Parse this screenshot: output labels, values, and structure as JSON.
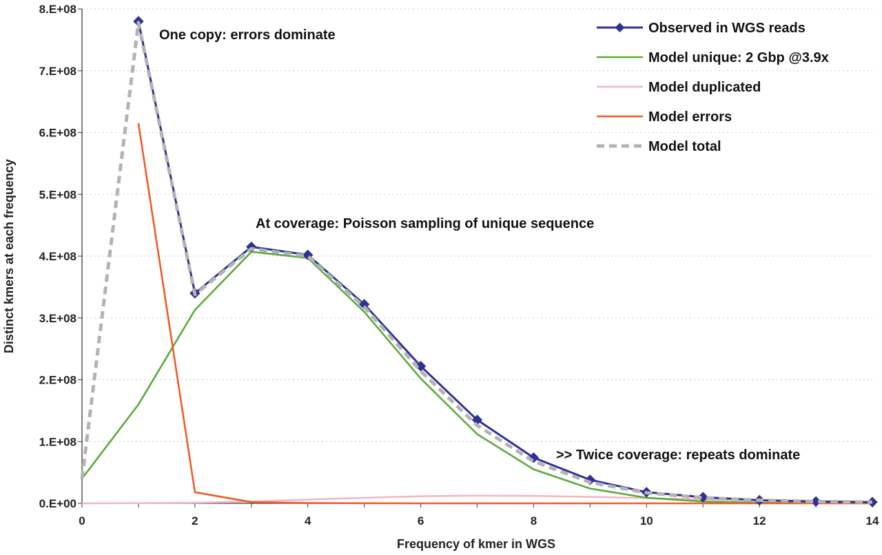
{
  "chart_data": {
    "type": "line",
    "title": "",
    "xlabel": "Frequency of kmer in WGS",
    "ylabel": "Distinct kmers at each frequency",
    "xlim": [
      0,
      14
    ],
    "ylim": [
      0,
      800000000
    ],
    "x_ticks": [
      0,
      2,
      4,
      6,
      8,
      10,
      12,
      14
    ],
    "x_tick_labels": [
      "0",
      "2",
      "4",
      "6",
      "8",
      "10",
      "12",
      "14"
    ],
    "y_ticks": [
      0,
      100000000,
      200000000,
      300000000,
      400000000,
      500000000,
      600000000,
      700000000,
      800000000
    ],
    "y_tick_labels": [
      "0.E+00",
      "1.E+08",
      "2.E+08",
      "3.E+08",
      "4.E+08",
      "5.E+08",
      "6.E+08",
      "7.E+08",
      "8.E+08"
    ],
    "grid": "horizontal dotted",
    "legend_position": "top-right",
    "series": [
      {
        "name": "Observed in WGS reads",
        "color": "#2e3192",
        "marker": "diamond",
        "x": [
          1,
          2,
          3,
          4,
          5,
          6,
          7,
          8,
          9,
          10,
          11,
          12,
          13,
          14
        ],
        "values": [
          780000000,
          340000000,
          415000000,
          402000000,
          322000000,
          222000000,
          135000000,
          74000000,
          38000000,
          18000000,
          10000000,
          5000000,
          3000000,
          2000000
        ]
      },
      {
        "name": "Model unique: 2 Gbp @3.9x",
        "color": "#5aaa3c",
        "x": [
          0,
          1,
          2,
          3,
          4,
          5,
          6,
          7,
          8,
          9,
          10,
          11,
          12,
          13,
          14
        ],
        "values": [
          40000000,
          160000000,
          313000000,
          407000000,
          397000000,
          310000000,
          202000000,
          112000000,
          55000000,
          24000000,
          9000000,
          3000000,
          1000000,
          500000,
          200000
        ]
      },
      {
        "name": "Model duplicated",
        "color": "#f7b6c5",
        "x": [
          0,
          1,
          2,
          3,
          4,
          5,
          6,
          7,
          8,
          9,
          10,
          11,
          12,
          13,
          14
        ],
        "values": [
          0,
          300000,
          1000000,
          3000000,
          6000000,
          9000000,
          11500000,
          12500000,
          12000000,
          10500000,
          8500000,
          6500000,
          5000000,
          3500000,
          2500000
        ]
      },
      {
        "name": "Model errors",
        "color": "#f15a24",
        "x": [
          1,
          2,
          3,
          4,
          5,
          6,
          7,
          8,
          9,
          10,
          11,
          12,
          13,
          14
        ],
        "values": [
          615000000,
          18000000,
          2000000,
          500000,
          200000,
          0,
          0,
          0,
          0,
          0,
          0,
          0,
          0,
          0
        ]
      },
      {
        "name": "Model total",
        "color": "#b3b3b3",
        "dash": "dashed",
        "x": [
          0,
          1,
          2,
          3,
          4,
          5,
          6,
          7,
          8,
          9,
          10,
          11,
          12,
          13,
          14
        ],
        "values": [
          40000000,
          778000000,
          338000000,
          412000000,
          400000000,
          318000000,
          214000000,
          126000000,
          68000000,
          34000000,
          17000000,
          9000000,
          5000000,
          3000000,
          2000000
        ]
      }
    ],
    "annotations": [
      {
        "text": "One copy: errors dominate"
      },
      {
        "text": "At coverage: Poisson sampling of unique sequence"
      },
      {
        "text": ">> Twice coverage: repeats dominate"
      }
    ]
  }
}
